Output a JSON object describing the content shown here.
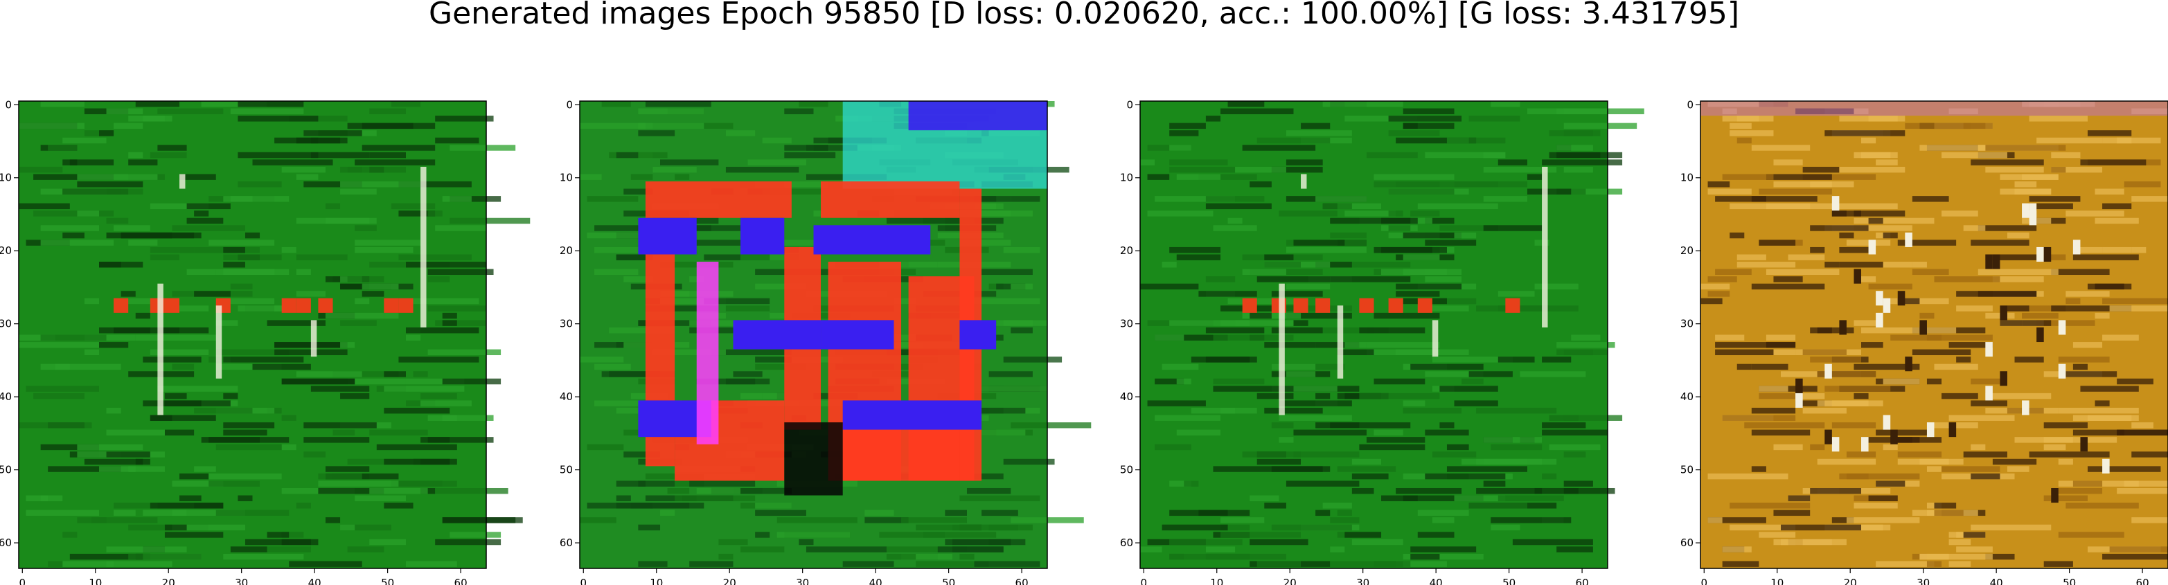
{
  "figure": {
    "suptitle": "Generated images Epoch 95850 [D loss: 0.020620, acc.: 100.00%] [G loss: 3.431795]"
  },
  "chart_data": [
    {
      "type": "heatmap",
      "description_colors": {
        "base": "#1a8a1a",
        "accent_red": "#e8401a",
        "accent_white": "#f2f2e0",
        "dark": "#0a3a0a"
      },
      "xlim": [
        -0.5,
        63.5
      ],
      "ylim": [
        63.5,
        -0.5
      ],
      "x_ticks": [
        0,
        10,
        20,
        30,
        40,
        50,
        60
      ],
      "y_ticks": [
        0,
        10,
        20,
        30,
        40,
        50,
        60
      ],
      "grid": false
    },
    {
      "type": "heatmap",
      "description_colors": {
        "base": "#1f8c22",
        "accent_red": "#ff3b1f",
        "accent_blue": "#3a1ff0",
        "accent_magenta": "#ff40ff",
        "accent_cyan": "#30e0e0"
      },
      "xlim": [
        -0.5,
        63.5
      ],
      "ylim": [
        63.5,
        -0.5
      ],
      "x_ticks": [
        0,
        10,
        20,
        30,
        40,
        50,
        60
      ],
      "y_ticks": [
        0,
        10,
        20,
        30,
        40,
        50,
        60
      ],
      "grid": false
    },
    {
      "type": "heatmap",
      "description_colors": {
        "base": "#1a8a1a",
        "accent_red": "#e8401a",
        "accent_white": "#f2f2e0",
        "dark": "#0a3a0a"
      },
      "xlim": [
        -0.5,
        63.5
      ],
      "ylim": [
        63.5,
        -0.5
      ],
      "x_ticks": [
        0,
        10,
        20,
        30,
        40,
        50,
        60
      ],
      "y_ticks": [
        0,
        10,
        20,
        30,
        40,
        50,
        60
      ],
      "grid": false
    },
    {
      "type": "heatmap",
      "description_colors": {
        "base": "#c8901a",
        "light": "#e8b850",
        "dark": "#3a2008",
        "accent_white": "#f4f0e0"
      },
      "xlim": [
        -0.5,
        63.5
      ],
      "ylim": [
        63.5,
        -0.5
      ],
      "x_ticks": [
        0,
        10,
        20,
        30,
        40,
        50,
        60
      ],
      "y_ticks": [
        0,
        10,
        20,
        30,
        40,
        50,
        60
      ],
      "grid": false
    }
  ]
}
